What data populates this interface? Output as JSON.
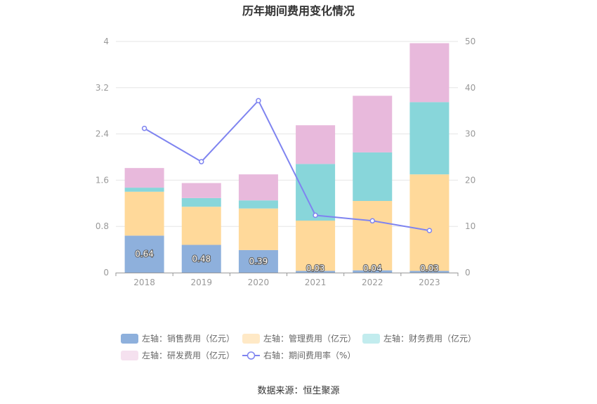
{
  "chart_data": {
    "type": "bar",
    "title": "历年期间费用变化情况",
    "categories": [
      "2018",
      "2019",
      "2020",
      "2021",
      "2022",
      "2023"
    ],
    "left_axis": {
      "ylim": [
        0,
        4
      ],
      "ticks": [
        "0",
        "0.8",
        "1.6",
        "2.4",
        "3.2",
        "4"
      ]
    },
    "right_axis": {
      "ylim": [
        0,
        50
      ],
      "ticks": [
        "0",
        "10",
        "20",
        "30",
        "40",
        "50"
      ]
    },
    "series": [
      {
        "name": "左轴：销售费用（亿元）",
        "type": "bar",
        "axis": "left",
        "color": "#8eb0dc",
        "values": [
          0.64,
          0.48,
          0.39,
          0.03,
          0.04,
          0.03
        ],
        "labels": [
          "0.64",
          "0.48",
          "0.39",
          "0.03",
          "0.04",
          "0.03"
        ]
      },
      {
        "name": "左轴：管理费用（亿元）",
        "type": "bar",
        "axis": "left",
        "color": "#ffd99a",
        "values": [
          0.76,
          0.66,
          0.72,
          0.87,
          1.2,
          1.67
        ]
      },
      {
        "name": "左轴：财务费用（亿元）",
        "type": "bar",
        "axis": "left",
        "color": "#88d6da",
        "values": [
          0.07,
          0.15,
          0.14,
          0.98,
          0.84,
          1.25
        ]
      },
      {
        "name": "左轴：研发费用（亿元）",
        "type": "bar",
        "axis": "left",
        "color": "#e8b9dc",
        "values": [
          0.34,
          0.26,
          0.45,
          0.67,
          0.98,
          1.02
        ]
      },
      {
        "name": "右轴：期间费用率（%）",
        "type": "line",
        "axis": "right",
        "color": "#7f84f0",
        "values": [
          31.2,
          24.0,
          37.2,
          12.4,
          11.2,
          9.1
        ]
      }
    ],
    "legend": {
      "placement": "bottom",
      "swatch_colors": [
        "#8eb0dc",
        "#ffe9c6",
        "#c2ecee",
        "#f5e1ef",
        "#7f84f0"
      ]
    },
    "grid": true
  },
  "source": "数据来源：恒生聚源"
}
